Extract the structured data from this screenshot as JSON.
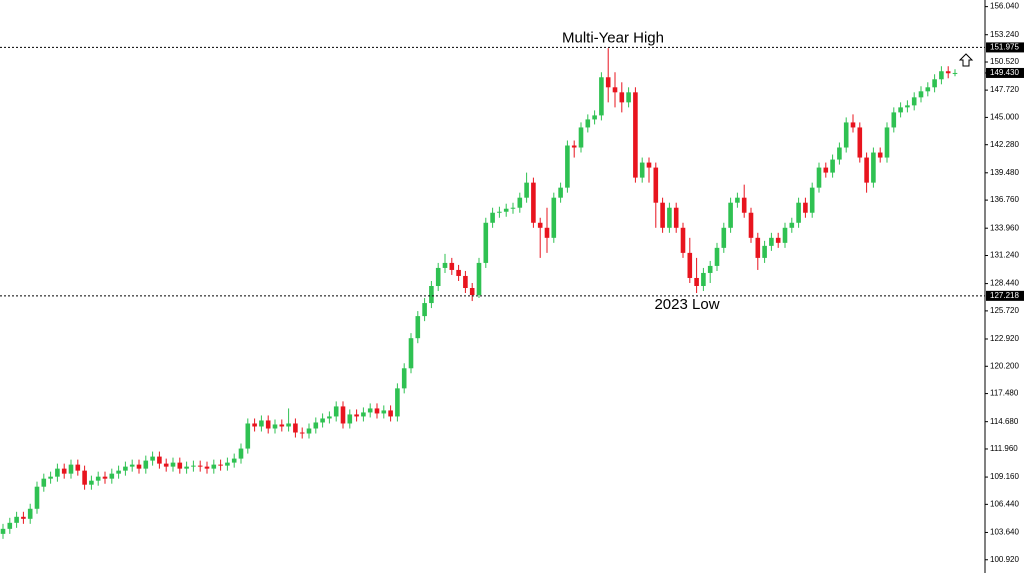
{
  "chart_data": {
    "type": "candlestick",
    "up_color": "#2fc152",
    "down_color": "#e8141e",
    "ylim": [
      99.6,
      156.7
    ],
    "yticks": [
      {
        "value": 156.04,
        "label": "156.040"
      },
      {
        "value": 153.24,
        "label": "153.240"
      },
      {
        "value": 150.52,
        "label": "150.520"
      },
      {
        "value": 147.72,
        "label": "147.720"
      },
      {
        "value": 145,
        "label": "145.000"
      },
      {
        "value": 142.28,
        "label": "142.280"
      },
      {
        "value": 139.48,
        "label": "139.480"
      },
      {
        "value": 136.76,
        "label": "136.760"
      },
      {
        "value": 133.96,
        "label": "133.960"
      },
      {
        "value": 131.24,
        "label": "131.240"
      },
      {
        "value": 128.44,
        "label": "128.440"
      },
      {
        "value": 125.72,
        "label": "125.720"
      },
      {
        "value": 122.92,
        "label": "122.920"
      },
      {
        "value": 120.2,
        "label": "120.200"
      },
      {
        "value": 117.48,
        "label": "117.480"
      },
      {
        "value": 114.68,
        "label": "114.680"
      },
      {
        "value": 111.96,
        "label": "111.960"
      },
      {
        "value": 109.16,
        "label": "109.160"
      },
      {
        "value": 106.44,
        "label": "106.440"
      },
      {
        "value": 103.64,
        "label": "103.640"
      },
      {
        "value": 100.92,
        "label": "100.920"
      }
    ],
    "levels": [
      {
        "value": 151.975,
        "label": "151.975",
        "text": "Multi-Year High"
      },
      {
        "value": 127.218,
        "label": "127.218",
        "text": "2023 Low"
      }
    ],
    "last_price": {
      "value": 149.43,
      "label": "149.430"
    },
    "open": [
      103.5,
      104.0,
      104.6,
      105.2,
      105.0,
      106.0,
      108.2,
      109.0,
      109.2,
      110.0,
      109.5,
      110.4,
      109.8,
      108.4,
      108.8,
      109.2,
      109.0,
      109.5,
      109.8,
      110.2,
      110.4,
      110.0,
      110.8,
      111.2,
      110.5,
      110.2,
      110.6,
      110.0,
      110.2,
      110.3,
      110.2,
      110.0,
      110.4,
      110.3,
      110.6,
      111.0,
      112.0,
      114.5,
      114.2,
      114.8,
      114.0,
      114.4,
      114.2,
      114.5,
      113.6,
      113.5,
      114.0,
      114.6,
      115.0,
      115.2,
      116.2,
      114.5,
      115.4,
      115.2,
      115.6,
      116.0,
      115.5,
      115.8,
      115.2,
      118.0,
      120.0,
      123.0,
      125.2,
      126.5,
      128.2,
      130.0,
      130.5,
      129.8,
      129.2,
      128.0,
      127.3,
      130.5,
      134.5,
      135.5,
      135.6,
      135.9,
      136.0,
      137.0,
      138.5,
      134.5,
      134.0,
      133.0,
      137.0,
      138.0,
      142.2,
      142.0,
      144.0,
      144.8,
      145.2,
      149.0,
      148.0,
      147.5,
      146.5,
      147.5,
      139.0,
      140.5,
      140.0,
      136.5,
      134.0,
      136.0,
      134.0,
      131.5,
      129.0,
      128.2,
      129.5,
      130.2,
      132.0,
      134.0,
      136.5,
      137.0,
      135.5,
      133.0,
      131.0,
      132.2,
      133.0,
      132.5,
      134.0,
      134.5,
      136.5,
      135.5,
      138.0,
      140.0,
      139.5,
      140.8,
      142.0,
      144.5,
      144.0,
      141.0,
      138.5,
      141.5,
      141.0,
      144.0,
      145.5,
      146.0,
      146.2,
      147.0,
      147.6,
      148.0,
      148.8,
      149.6,
      149.4
    ],
    "high": [
      104.5,
      105.1,
      105.7,
      105.7,
      106.5,
      108.7,
      109.5,
      109.7,
      110.5,
      110.5,
      110.9,
      110.9,
      110.3,
      109.3,
      109.7,
      109.7,
      110.0,
      110.3,
      110.7,
      110.9,
      110.9,
      111.3,
      111.7,
      111.7,
      111.0,
      111.1,
      111.1,
      110.7,
      110.8,
      110.8,
      110.7,
      110.9,
      110.9,
      111.1,
      111.5,
      112.5,
      115.0,
      115.0,
      115.3,
      115.3,
      114.9,
      114.9,
      116.0,
      115.0,
      114.1,
      114.5,
      115.1,
      115.5,
      115.7,
      116.7,
      116.7,
      115.9,
      115.9,
      116.1,
      116.5,
      116.5,
      116.3,
      116.3,
      118.5,
      120.5,
      123.5,
      125.7,
      127.0,
      128.7,
      130.5,
      131.4,
      131.0,
      130.3,
      129.7,
      128.5,
      131.0,
      135.0,
      136.0,
      136.1,
      136.4,
      136.5,
      137.5,
      139.5,
      139.0,
      135.0,
      136.0,
      137.5,
      138.5,
      142.7,
      142.7,
      144.5,
      145.3,
      145.7,
      149.5,
      151.9,
      149.5,
      148.5,
      148.0,
      148.0,
      141.0,
      141.0,
      140.5,
      137.0,
      136.5,
      136.5,
      134.5,
      133.0,
      131.0,
      130.0,
      130.7,
      132.5,
      134.5,
      137.0,
      137.5,
      138.3,
      136.0,
      133.5,
      132.7,
      133.5,
      133.5,
      134.5,
      135.0,
      137.0,
      137.0,
      138.5,
      140.5,
      140.5,
      141.3,
      142.5,
      145.0,
      145.3,
      144.5,
      141.5,
      142.0,
      142.0,
      144.5,
      146.0,
      146.5,
      146.7,
      147.5,
      148.1,
      148.5,
      149.3,
      150.1,
      150.1,
      149.8
    ],
    "low": [
      103.0,
      103.5,
      104.1,
      104.5,
      104.5,
      105.5,
      107.7,
      108.5,
      108.7,
      109.0,
      109.0,
      109.3,
      107.9,
      107.9,
      108.3,
      108.5,
      108.5,
      109.0,
      109.3,
      109.7,
      109.5,
      109.5,
      110.3,
      110.0,
      109.7,
      109.7,
      109.5,
      109.5,
      109.7,
      109.7,
      109.5,
      109.5,
      109.8,
      109.8,
      110.1,
      110.5,
      111.5,
      113.7,
      113.7,
      113.5,
      113.5,
      113.7,
      113.7,
      113.1,
      113.0,
      113.0,
      113.5,
      114.1,
      114.5,
      114.7,
      114.0,
      114.0,
      114.7,
      114.7,
      115.1,
      115.0,
      115.0,
      114.7,
      114.7,
      117.5,
      119.5,
      122.5,
      124.7,
      126.0,
      127.7,
      129.5,
      129.3,
      128.7,
      127.5,
      126.7,
      127.0,
      130.0,
      134.0,
      135.0,
      135.1,
      135.4,
      135.5,
      136.5,
      134.0,
      131.0,
      131.5,
      132.5,
      136.5,
      137.5,
      141.0,
      141.5,
      143.5,
      144.3,
      144.7,
      146.5,
      146.0,
      145.5,
      146.0,
      138.5,
      138.5,
      138.5,
      134.0,
      133.5,
      133.5,
      133.5,
      131.0,
      128.5,
      127.5,
      127.7,
      128.5,
      129.7,
      131.5,
      133.5,
      136.0,
      135.0,
      132.5,
      129.8,
      130.5,
      131.7,
      132.0,
      132.0,
      133.5,
      134.0,
      135.0,
      135.0,
      137.5,
      139.0,
      139.0,
      140.3,
      141.5,
      143.5,
      140.5,
      137.5,
      138.0,
      140.5,
      140.5,
      143.5,
      145.0,
      145.5,
      145.7,
      146.5,
      147.1,
      147.5,
      148.3,
      148.9,
      149.1
    ],
    "close": [
      104.0,
      104.6,
      105.2,
      105.0,
      106.0,
      108.2,
      109.0,
      109.2,
      110.0,
      109.5,
      110.4,
      109.8,
      108.4,
      108.8,
      109.2,
      109.0,
      109.5,
      109.8,
      110.2,
      110.4,
      110.0,
      110.8,
      111.2,
      110.5,
      110.2,
      110.6,
      110.0,
      110.2,
      110.3,
      110.2,
      110.0,
      110.4,
      110.3,
      110.6,
      111.0,
      112.0,
      114.5,
      114.2,
      114.8,
      114.0,
      114.4,
      114.2,
      114.5,
      113.6,
      113.5,
      114.0,
      114.6,
      115.0,
      115.2,
      116.2,
      114.5,
      115.4,
      115.2,
      115.6,
      116.0,
      115.5,
      115.8,
      115.2,
      118.0,
      120.0,
      123.0,
      125.2,
      126.5,
      128.2,
      130.0,
      130.5,
      129.8,
      129.2,
      128.0,
      127.3,
      130.5,
      134.5,
      135.5,
      135.6,
      135.9,
      136.0,
      137.0,
      138.5,
      134.5,
      134.0,
      133.0,
      137.0,
      138.0,
      142.2,
      142.0,
      144.0,
      144.8,
      145.2,
      149.0,
      148.0,
      147.5,
      146.5,
      147.5,
      139.0,
      140.5,
      140.0,
      136.5,
      134.0,
      136.0,
      134.0,
      131.5,
      129.0,
      128.2,
      129.5,
      130.2,
      132.0,
      134.0,
      136.5,
      137.0,
      135.5,
      133.0,
      131.0,
      132.2,
      133.0,
      132.5,
      134.0,
      134.5,
      136.5,
      135.5,
      138.0,
      140.0,
      139.5,
      140.8,
      142.0,
      144.5,
      144.0,
      141.0,
      138.5,
      141.5,
      141.0,
      144.0,
      145.5,
      146.0,
      146.2,
      147.0,
      147.6,
      148.0,
      148.8,
      149.6,
      149.4,
      149.43
    ]
  }
}
